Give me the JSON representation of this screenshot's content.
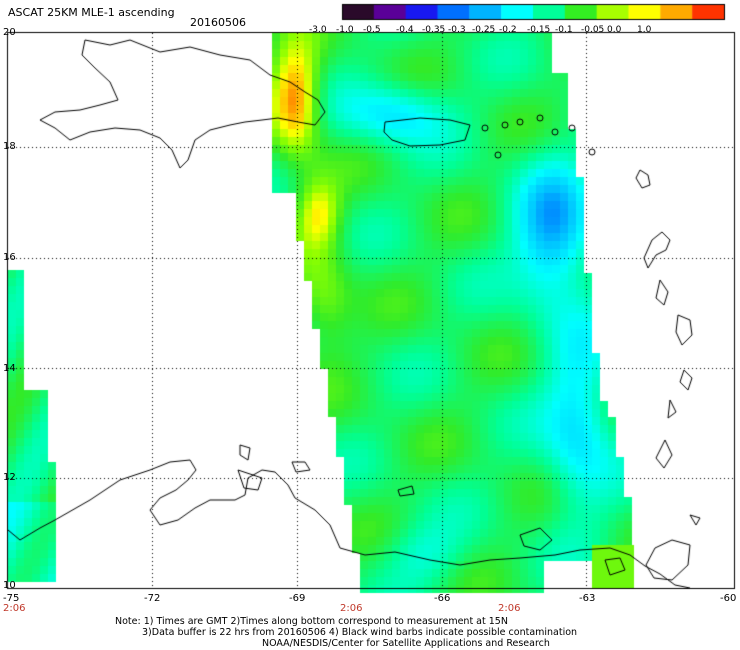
{
  "title": "ASCAT 25KM MLE-1 ascending",
  "date": "20160506",
  "colorbar": {
    "labels": [
      "-3.0",
      "-1.0",
      "-0.5",
      "-0.4",
      "-0.35",
      "-0.3",
      "-0.25",
      "-0.2",
      "-0.15",
      "-0.1",
      "-0.05",
      "0.0",
      "1.0"
    ],
    "colors": [
      "#2a0a2a",
      "#5a0098",
      "#1818f0",
      "#0070ff",
      "#00b4ff",
      "#00ffff",
      "#00ff9a",
      "#33ee22",
      "#a8ff00",
      "#ffff00",
      "#ffaa00",
      "#ff3300"
    ]
  },
  "axes": {
    "lat_labels": [
      "20",
      "18",
      "16",
      "14",
      "12",
      "10"
    ],
    "lon_labels": [
      "-75",
      "-72",
      "-69",
      "-66",
      "-63",
      "-60"
    ],
    "time_labels": [
      "2:06",
      "2:06",
      "2:06"
    ]
  },
  "notes": {
    "line1": "Note: 1) Times are GMT 2)Times along bottom correspond to measurement at 15N",
    "line2": "3)Data buffer is 22 hrs from 20160506 4) Black wind barbs indicate possible contamination",
    "line3": "NOAA/NESDIS/Center for Satellite Applications and Research"
  }
}
